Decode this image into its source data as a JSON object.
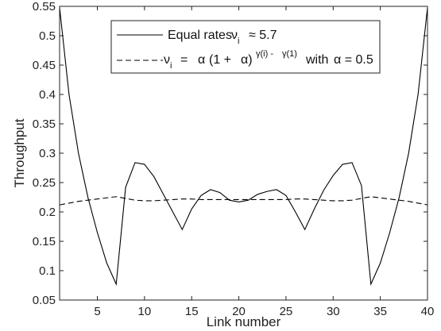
{
  "chart_data": {
    "type": "line",
    "xlabel": "Link number",
    "ylabel": "Throughput",
    "xlim": [
      1,
      40
    ],
    "ylim": [
      0.05,
      0.55
    ],
    "xticks": [
      5,
      10,
      15,
      20,
      25,
      30,
      35,
      40
    ],
    "xtick_labels": [
      "5",
      "10",
      "15",
      "20",
      "25",
      "30",
      "35",
      "40"
    ],
    "yticks": [
      0.05,
      0.1,
      0.15,
      0.2,
      0.25,
      0.3,
      0.35,
      0.4,
      0.45,
      0.5,
      0.55
    ],
    "ytick_labels": [
      "0.05",
      "0.1",
      "0.15",
      "0.2",
      "0.25",
      "0.3",
      "0.35",
      "0.4",
      "0.45",
      "0.5",
      "0.55"
    ],
    "grid": false,
    "legend_position": "top-center",
    "series": [
      {
        "legend_parts": [
          "Equal rates",
          "ν",
          "i",
          "≈ 5.7"
        ],
        "line_style": "solid",
        "color": "#000000",
        "x": [
          1,
          2,
          3,
          4,
          5,
          6,
          7,
          8,
          9,
          10,
          11,
          12,
          13,
          14,
          15,
          16,
          17,
          18,
          19,
          20,
          21,
          22,
          23,
          24,
          25,
          26,
          27,
          28,
          29,
          30,
          31,
          32,
          33,
          34,
          35,
          36,
          37,
          38,
          39,
          40
        ],
        "y": [
          0.548,
          0.4,
          0.3,
          0.225,
          0.165,
          0.113,
          0.077,
          0.242,
          0.284,
          0.281,
          0.26,
          0.23,
          0.2,
          0.17,
          0.205,
          0.228,
          0.238,
          0.233,
          0.22,
          0.217,
          0.22,
          0.23,
          0.235,
          0.238,
          0.228,
          0.2,
          0.17,
          0.205,
          0.237,
          0.262,
          0.281,
          0.284,
          0.245,
          0.077,
          0.113,
          0.165,
          0.225,
          0.3,
          0.4,
          0.548
        ]
      },
      {
        "legend_parts": [
          "ν",
          "i",
          "=",
          "α",
          "(1 +",
          "α)",
          "γ(i) -",
          "γ(1)",
          "with",
          "α = 0.5"
        ],
        "line_style": "dashed",
        "color": "#000000",
        "x": [
          1,
          2,
          3,
          4,
          5,
          6,
          7,
          8,
          9,
          10,
          11,
          12,
          13,
          14,
          15,
          16,
          17,
          18,
          19,
          20,
          21,
          22,
          23,
          24,
          25,
          26,
          27,
          28,
          29,
          30,
          31,
          32,
          33,
          34,
          35,
          36,
          37,
          38,
          39,
          40
        ],
        "y": [
          0.212,
          0.215,
          0.218,
          0.22,
          0.222,
          0.224,
          0.226,
          0.223,
          0.22,
          0.219,
          0.219,
          0.22,
          0.221,
          0.222,
          0.222,
          0.221,
          0.221,
          0.221,
          0.221,
          0.221,
          0.221,
          0.221,
          0.221,
          0.221,
          0.221,
          0.222,
          0.222,
          0.221,
          0.22,
          0.219,
          0.219,
          0.22,
          0.223,
          0.226,
          0.224,
          0.222,
          0.22,
          0.218,
          0.215,
          0.212
        ]
      }
    ]
  }
}
